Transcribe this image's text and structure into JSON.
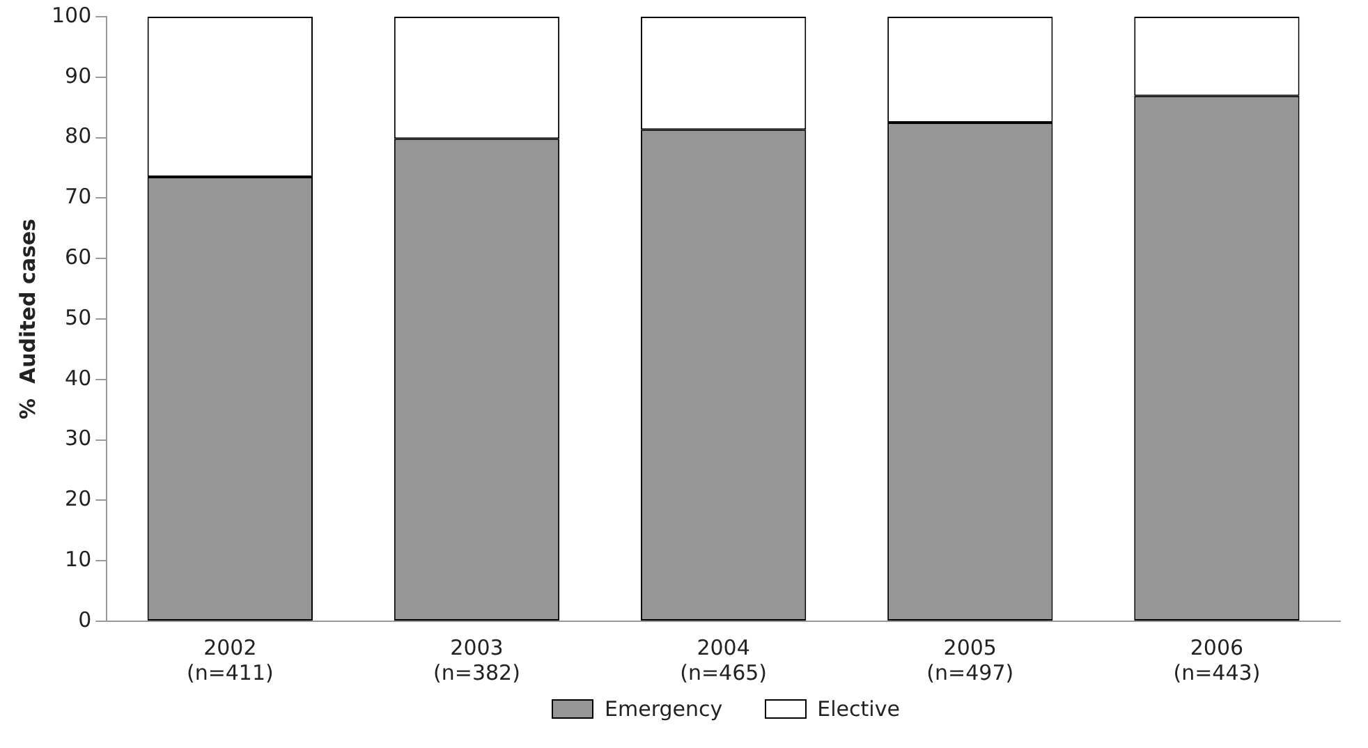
{
  "chart_data": {
    "type": "bar",
    "stacked": true,
    "ylabel": "%  Audited cases",
    "categories": [
      "2002\n(n=411)",
      "2003\n(n=382)",
      "2004\n(n=465)",
      "2005\n(n=497)",
      "2006\n(n=443)"
    ],
    "series": [
      {
        "name": "Emergency",
        "color": "#969696",
        "values": [
          73.5,
          79.8,
          81.3,
          82.5,
          86.9
        ]
      },
      {
        "name": "Elective",
        "color": "#ffffff",
        "values": [
          26.5,
          20.2,
          18.7,
          17.5,
          13.1
        ]
      }
    ],
    "ylim": [
      0,
      100
    ],
    "yticks": [
      0,
      10,
      20,
      30,
      40,
      50,
      60,
      70,
      80,
      90,
      100
    ],
    "grid": false,
    "legend": "bottom"
  }
}
